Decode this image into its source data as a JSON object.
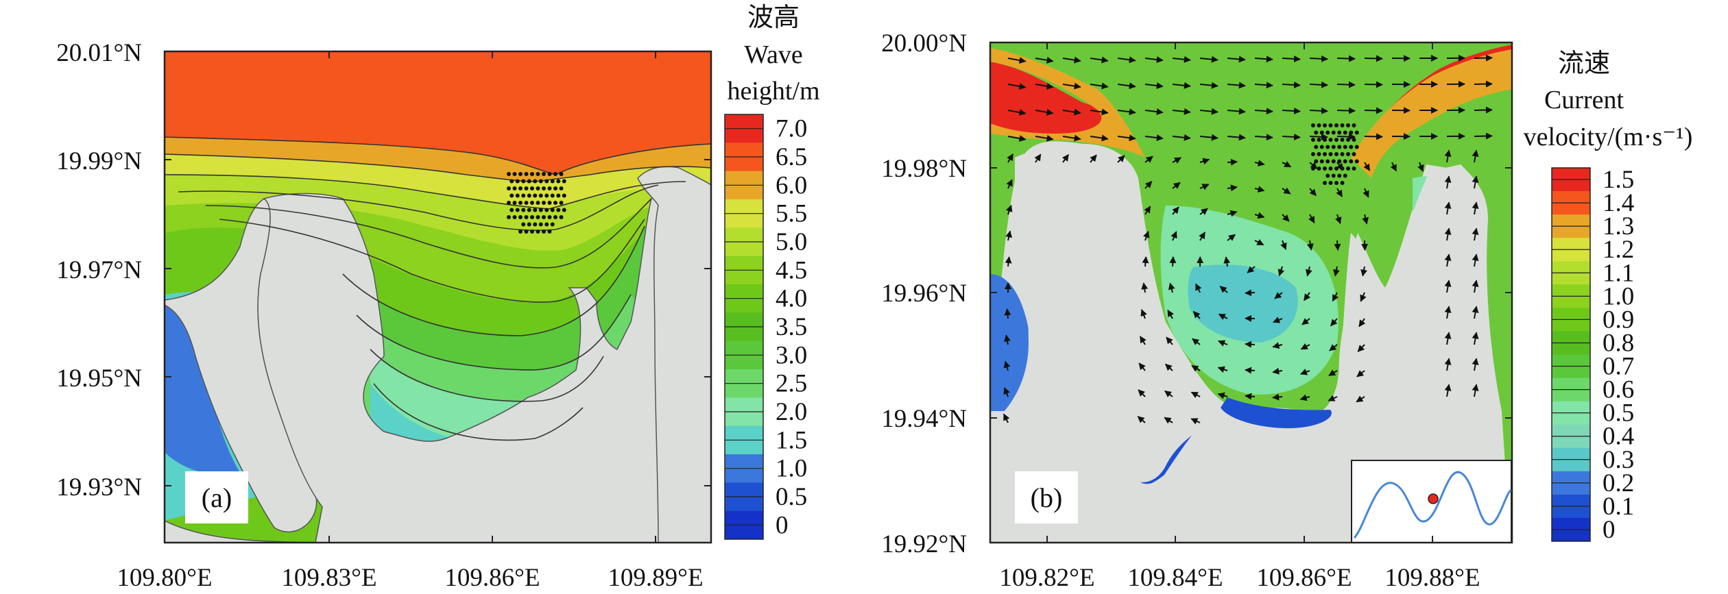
{
  "panel_a": {
    "label": "(a)",
    "lat_ticks": [
      "20.01°N",
      "19.99°N",
      "19.97°N",
      "19.95°N",
      "19.93°N"
    ],
    "lon_ticks": [
      "109.80°E",
      "109.83°E",
      "109.86°E",
      "109.89°E"
    ],
    "colorbar": {
      "title_cn": "波高",
      "title_en_line1": "Wave",
      "title_en_line2": "height/m",
      "labels": [
        "7.0",
        "6.5",
        "6.0",
        "5.5",
        "5.0",
        "4.5",
        "4.0",
        "3.5",
        "3.0",
        "2.5",
        "2.0",
        "1.5",
        "1.0",
        "0.5",
        "0"
      ],
      "colors": [
        "#e8281e",
        "#f4561e",
        "#e8a628",
        "#d7e23c",
        "#b4de2e",
        "#8cd21e",
        "#6ec81a",
        "#58be20",
        "#5ac83a",
        "#6cd86a",
        "#82e4a6",
        "#5ad2c8",
        "#3c78dc",
        "#1e50d2",
        "#1432c8"
      ]
    },
    "colors": {
      "land": "#dcdedc",
      "sea_deep": "#f4561e"
    }
  },
  "panel_b": {
    "label": "(b)",
    "lat_ticks": [
      "20.00°N",
      "19.98°N",
      "19.96°N",
      "19.94°N",
      "19.92°N"
    ],
    "lon_ticks": [
      "109.82°E",
      "109.84°E",
      "109.86°E",
      "109.88°E"
    ],
    "colorbar": {
      "title_cn": "流速",
      "title_en_line1": "Current",
      "title_en_line2": "velocity/(m·s⁻¹)",
      "labels": [
        "1.5",
        "1.4",
        "1.3",
        "1.2",
        "1.1",
        "1.0",
        "0.9",
        "0.8",
        "0.7",
        "0.6",
        "0.5",
        "0.4",
        "0.3",
        "0.2",
        "0.1",
        "0"
      ],
      "colors": [
        "#e8281e",
        "#f4561e",
        "#e8a628",
        "#d7e23c",
        "#b4de2e",
        "#8cd21e",
        "#6ec81a",
        "#58be20",
        "#5ac83a",
        "#6cd86a",
        "#82e4a6",
        "#7ed8b8",
        "#5ac8c8",
        "#3c78dc",
        "#1e50d2",
        "#1432c8"
      ]
    },
    "colors": {
      "land": "#dcdedc",
      "sea": "#6cc83a"
    }
  }
}
